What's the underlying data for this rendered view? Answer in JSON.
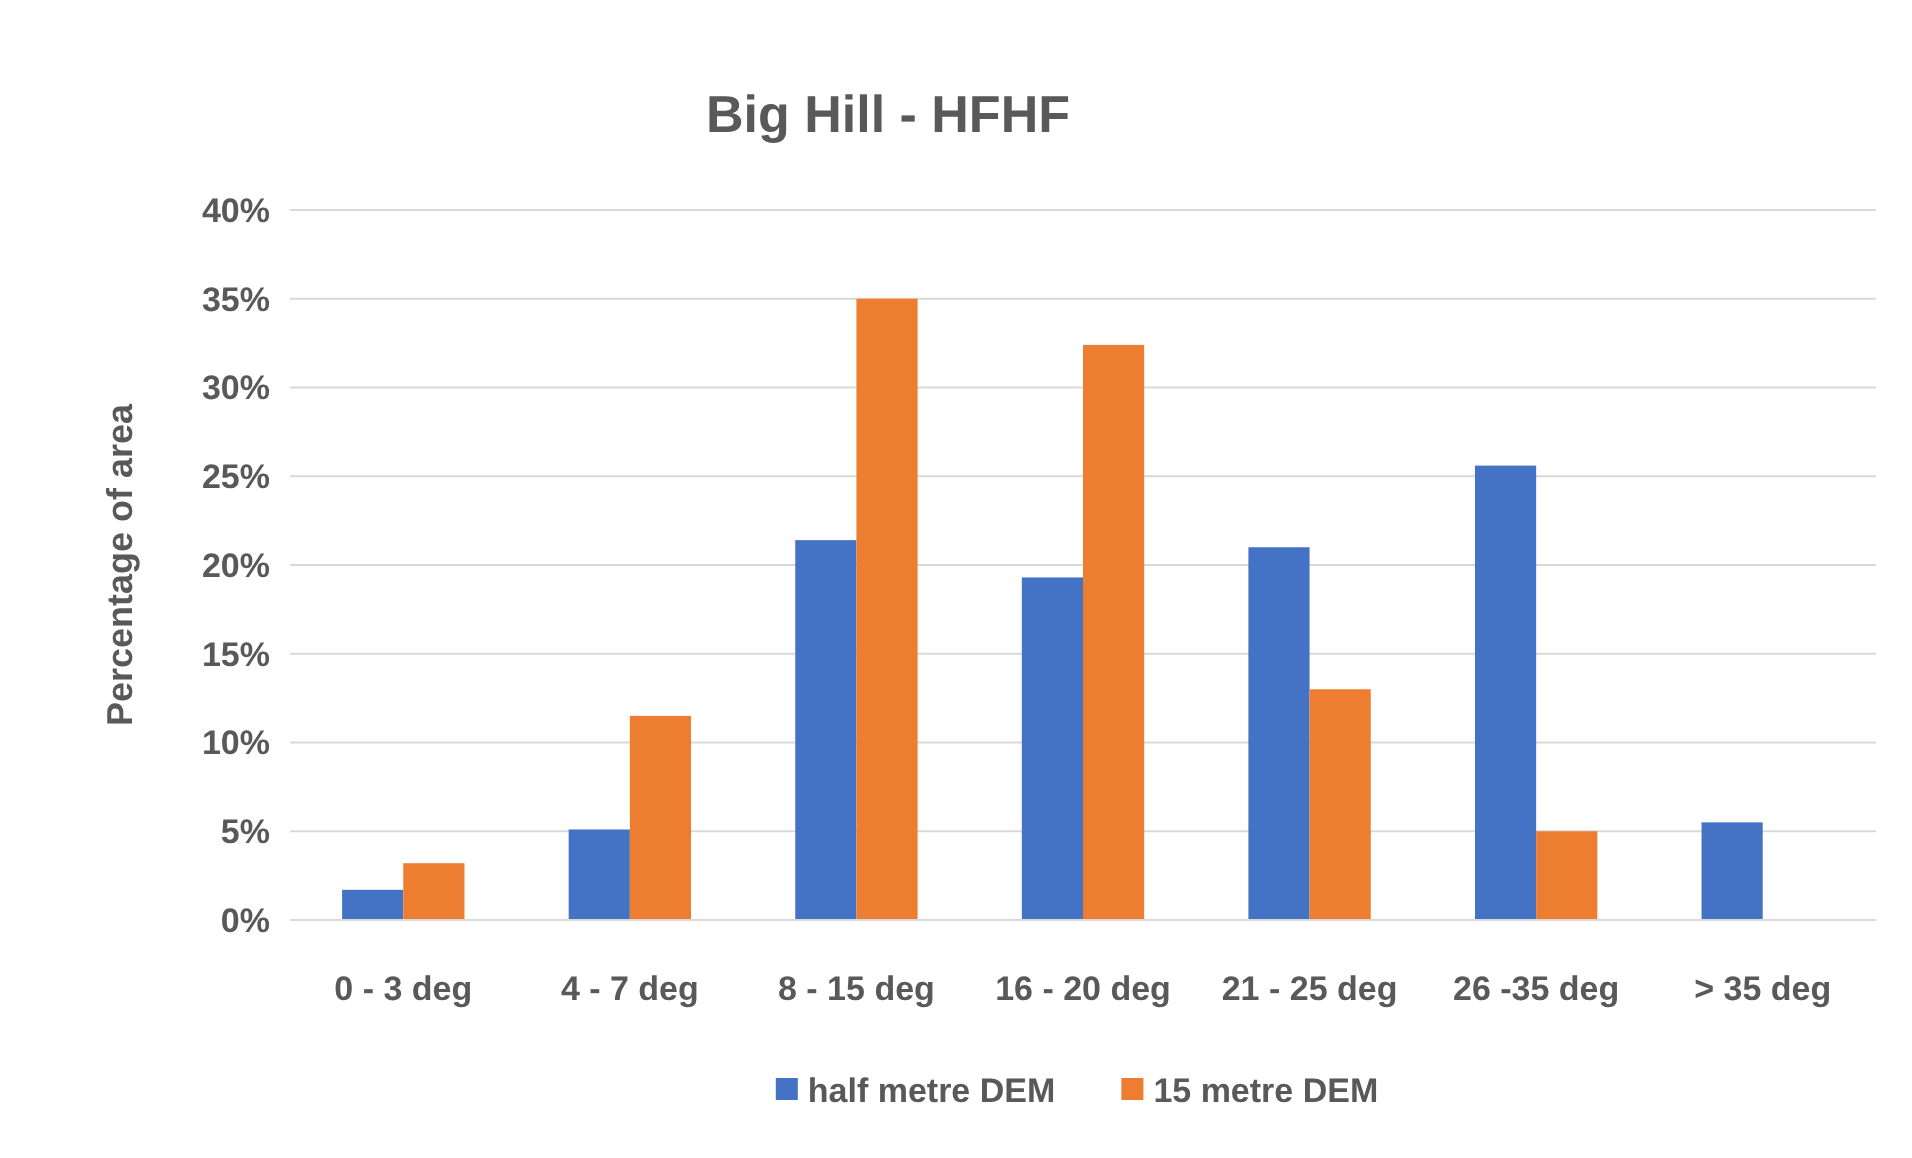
{
  "chart_data": {
    "type": "bar",
    "title": "Big Hill - HFHF",
    "ylabel": "Percentage of area",
    "categories": [
      "0 - 3 deg",
      "4 - 7 deg",
      "8 - 15 deg",
      "16 - 20 deg",
      "21 - 25 deg",
      "26 -35 deg",
      "> 35 deg"
    ],
    "series": [
      {
        "name": "half metre DEM",
        "color": "#4472c4",
        "values": [
          1.7,
          5.1,
          21.4,
          19.3,
          21.0,
          25.6,
          5.5
        ]
      },
      {
        "name": "15 metre DEM",
        "color": "#ed7d31",
        "values": [
          3.2,
          11.5,
          35.0,
          32.4,
          13.0,
          5.0,
          0
        ]
      }
    ],
    "ylim": [
      0,
      40
    ],
    "yticks": [
      {
        "value": 0,
        "label": "0%"
      },
      {
        "value": 5,
        "label": "5%"
      },
      {
        "value": 10,
        "label": "10%"
      },
      {
        "value": 15,
        "label": "15%"
      },
      {
        "value": 20,
        "label": "20%"
      },
      {
        "value": 25,
        "label": "25%"
      },
      {
        "value": 30,
        "label": "30%"
      },
      {
        "value": 35,
        "label": "35%"
      },
      {
        "value": 40,
        "label": "40%"
      }
    ],
    "grid": "y",
    "legend": "bottom"
  }
}
